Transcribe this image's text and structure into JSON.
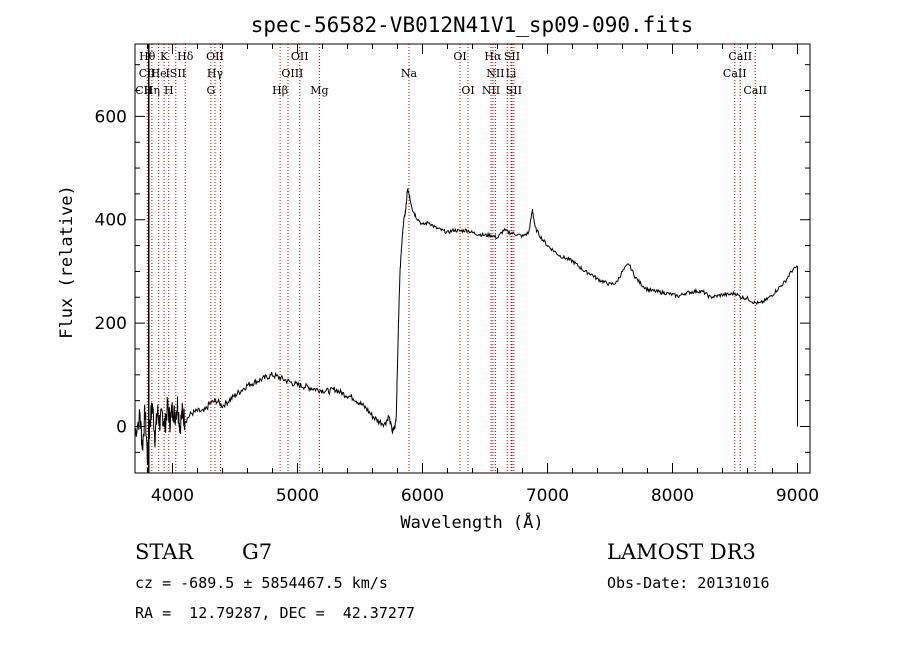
{
  "chart_data": {
    "type": "line",
    "title": "spec-56582-VB012N41V1_sp09-090.fits",
    "xlabel": "Wavelength (Å)",
    "ylabel": "Flux (relative)",
    "xlim": [
      3700,
      9100
    ],
    "ylim": [
      -90,
      740
    ],
    "xticks": [
      4000,
      5000,
      6000,
      7000,
      8000,
      9000
    ],
    "yticks": [
      0,
      200,
      400,
      600
    ],
    "grid": false,
    "series": [
      {
        "x": [
          3700,
          3740,
          3760,
          3780,
          3800,
          3820,
          3840,
          3860,
          3880,
          3900,
          3920,
          3940,
          3960,
          3980,
          4000,
          4020,
          4040,
          4060,
          4080,
          4100,
          4150,
          4200,
          4250,
          4300,
          4350,
          4400,
          4450,
          4500,
          4550,
          4600,
          4650,
          4700,
          4750,
          4800,
          4850,
          4900,
          4950,
          5000,
          5050,
          5100,
          5150,
          5200,
          5250,
          5300,
          5350,
          5400,
          5450,
          5500,
          5550,
          5600,
          5650,
          5700,
          5730,
          5760,
          5780,
          5790,
          5800,
          5810,
          5820,
          5830,
          5840,
          5850,
          5860,
          5870,
          5880,
          5890,
          5900,
          5920,
          5950,
          6000,
          6050,
          6100,
          6150,
          6200,
          6250,
          6300,
          6350,
          6400,
          6450,
          6500,
          6550,
          6600,
          6650,
          6700,
          6750,
          6800,
          6850,
          6880,
          6900,
          6950,
          7000,
          7050,
          7100,
          7150,
          7200,
          7250,
          7300,
          7350,
          7400,
          7450,
          7500,
          7550,
          7600,
          7650,
          7700,
          7750,
          7800,
          7850,
          7900,
          7950,
          8000,
          8050,
          8100,
          8150,
          8200,
          8250,
          8300,
          8350,
          8400,
          8450,
          8500,
          8550,
          8600,
          8650,
          8700,
          8750,
          8800,
          8850,
          8900,
          8950,
          9000
        ],
        "y": [
          -10,
          20,
          -40,
          30,
          -60,
          10,
          40,
          -20,
          30,
          5,
          25,
          0,
          40,
          10,
          35,
          20,
          45,
          0,
          30,
          10,
          25,
          30,
          28,
          45,
          50,
          40,
          50,
          60,
          70,
          80,
          85,
          90,
          95,
          100,
          95,
          90,
          85,
          80,
          78,
          75,
          72,
          70,
          68,
          72,
          65,
          60,
          55,
          45,
          35,
          20,
          10,
          5,
          20,
          -10,
          0,
          20,
          120,
          220,
          300,
          340,
          370,
          400,
          410,
          430,
          460,
          450,
          440,
          420,
          405,
          390,
          395,
          385,
          380,
          375,
          380,
          378,
          380,
          375,
          372,
          370,
          370,
          365,
          380,
          375,
          372,
          368,
          375,
          420,
          385,
          365,
          350,
          340,
          330,
          325,
          320,
          310,
          300,
          295,
          285,
          280,
          275,
          278,
          300,
          315,
          290,
          275,
          265,
          262,
          260,
          258,
          255,
          252,
          258,
          260,
          262,
          260,
          250,
          252,
          255,
          255,
          258,
          250,
          248,
          240,
          238,
          245,
          255,
          268,
          280,
          300,
          310
        ]
      }
    ],
    "lines_red": [
      3798,
      3835,
      3889,
      3933,
      3970,
      4026,
      4102,
      4307,
      4340,
      4384,
      4861,
      4924,
      5018,
      5175,
      5892,
      6300,
      6364,
      6548,
      6563,
      6583,
      6678,
      6708,
      6716,
      6731,
      8498,
      8542,
      8662
    ],
    "lines_black": [
      3810
    ],
    "line_labels": [
      {
        "text": "Hθ",
        "x": 3798,
        "row": 0
      },
      {
        "text": "K",
        "x": 3933,
        "row": 0
      },
      {
        "text": "Hδ",
        "x": 4102,
        "row": 0
      },
      {
        "text": "OII",
        "x": 4340,
        "row": 0
      },
      {
        "text": "OII",
        "x": 5018,
        "row": 0
      },
      {
        "text": "OI",
        "x": 6300,
        "row": 0
      },
      {
        "text": "Hα",
        "x": 6563,
        "row": 0
      },
      {
        "text": "SII",
        "x": 6716,
        "row": 0
      },
      {
        "text": "CaII",
        "x": 8542,
        "row": 0
      },
      {
        "text": "CII",
        "x": 3798,
        "row": 1
      },
      {
        "text": "He",
        "x": 3889,
        "row": 1
      },
      {
        "text": "ISII",
        "x": 4026,
        "row": 1
      },
      {
        "text": "Hγ",
        "x": 4340,
        "row": 1
      },
      {
        "text": "OIII",
        "x": 4959,
        "row": 1
      },
      {
        "text": "Na",
        "x": 5892,
        "row": 1
      },
      {
        "text": "NII",
        "x": 6583,
        "row": 1
      },
      {
        "text": "Li",
        "x": 6708,
        "row": 1
      },
      {
        "text": "CaII",
        "x": 8498,
        "row": 1
      },
      {
        "text": "CII",
        "x": 3770,
        "row": 2
      },
      {
        "text": "Hη",
        "x": 3835,
        "row": 2
      },
      {
        "text": "H",
        "x": 3970,
        "row": 2
      },
      {
        "text": "G",
        "x": 4307,
        "row": 2
      },
      {
        "text": "Hβ",
        "x": 4861,
        "row": 2
      },
      {
        "text": "Mg",
        "x": 5175,
        "row": 2
      },
      {
        "text": "OI",
        "x": 6364,
        "row": 2
      },
      {
        "text": "NII",
        "x": 6548,
        "row": 2
      },
      {
        "text": "SII",
        "x": 6731,
        "row": 2
      },
      {
        "text": "CaII",
        "x": 8662,
        "row": 2
      }
    ]
  },
  "footer": {
    "object_class": "STAR",
    "subclass": "G7",
    "survey": "LAMOST DR3",
    "velocity": "cz = -689.5 ± 5854467.5 km/s",
    "obs_date": "Obs-Date: 20131016",
    "coords": "RA =  12.79287, DEC =  42.37277"
  }
}
